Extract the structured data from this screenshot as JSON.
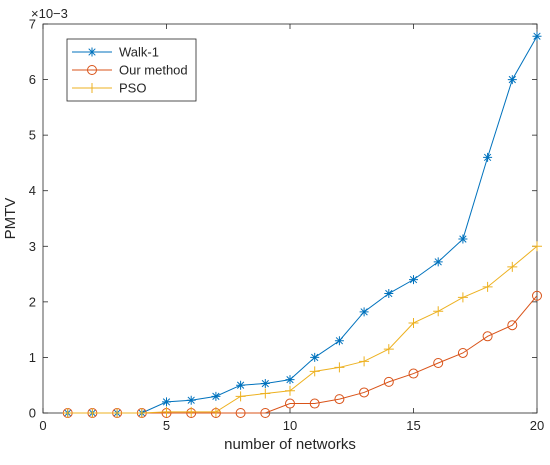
{
  "chart_data": {
    "type": "line",
    "xlabel": "number of networks",
    "ylabel": "PMTV",
    "y_scale_factor": "×10−3",
    "xlim": [
      0,
      20
    ],
    "ylim": [
      0,
      7
    ],
    "xticks": [
      0,
      5,
      10,
      15,
      20
    ],
    "yticks": [
      0,
      1,
      2,
      3,
      4,
      5,
      6,
      7
    ],
    "legend_position": "top-left",
    "grid": false,
    "x": [
      1,
      2,
      3,
      4,
      5,
      6,
      7,
      8,
      9,
      10,
      11,
      12,
      13,
      14,
      15,
      16,
      17,
      18,
      19,
      20
    ],
    "series": [
      {
        "name": "Walk-1",
        "color": "#0072BD",
        "marker": "asterisk",
        "values": [
          0,
          0,
          0,
          0,
          0.2,
          0.23,
          0.3,
          0.5,
          0.53,
          0.6,
          1.0,
          1.3,
          1.82,
          2.15,
          2.4,
          2.72,
          3.13,
          4.6,
          6.0,
          6.78
        ]
      },
      {
        "name": "Our method",
        "color": "#D95319",
        "marker": "circle",
        "values": [
          0,
          0,
          0,
          0,
          0,
          0,
          0,
          0,
          0,
          0.17,
          0.17,
          0.25,
          0.37,
          0.56,
          0.71,
          0.9,
          1.08,
          1.38,
          1.58,
          2.11
        ]
      },
      {
        "name": "PSO",
        "color": "#EDB120",
        "marker": "plus",
        "values": [
          0,
          0,
          0,
          0,
          0.02,
          0.02,
          0.02,
          0.3,
          0.35,
          0.4,
          0.75,
          0.82,
          0.93,
          1.15,
          1.62,
          1.83,
          2.08,
          2.27,
          2.63,
          3.0
        ]
      }
    ]
  }
}
